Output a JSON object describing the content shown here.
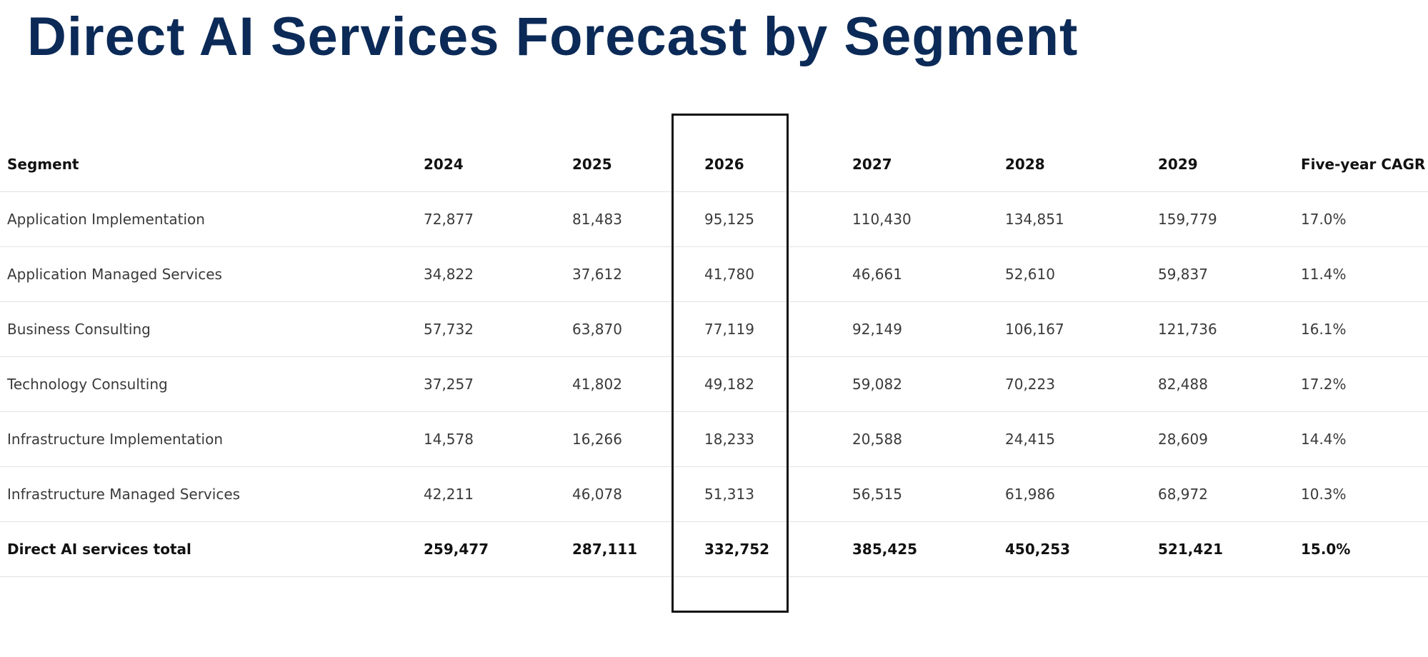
{
  "title": "Direct AI Services Forecast by Segment",
  "table": {
    "headers": [
      "Segment",
      "2024",
      "2025",
      "2026",
      "2027",
      "2028",
      "2029",
      "Five-year CAGR"
    ],
    "rows": [
      [
        "Application Implementation",
        "72,877",
        "81,483",
        "95,125",
        "110,430",
        "134,851",
        "159,779",
        "17.0%"
      ],
      [
        "Application Managed Services",
        "34,822",
        "37,612",
        "41,780",
        "46,661",
        "52,610",
        "59,837",
        "11.4%"
      ],
      [
        "Business Consulting",
        "57,732",
        "63,870",
        "77,119",
        "92,149",
        "106,167",
        "121,736",
        "16.1%"
      ],
      [
        "Technology Consulting",
        "37,257",
        "41,802",
        "49,182",
        "59,082",
        "70,223",
        "82,488",
        "17.2%"
      ],
      [
        "Infrastructure Implementation",
        "14,578",
        "16,266",
        "18,233",
        "20,588",
        "24,415",
        "28,609",
        "14.4%"
      ],
      [
        "Infrastructure Managed Services",
        "42,211",
        "46,078",
        "51,313",
        "56,515",
        "61,986",
        "68,972",
        "10.3%"
      ]
    ],
    "total": [
      "Direct AI services total",
      "259,477",
      "287,111",
      "332,752",
      "385,425",
      "450,253",
      "521,421",
      "15.0%"
    ]
  },
  "highlight": {
    "column": "2026"
  },
  "colors": {
    "title": "#0b2a57",
    "text": "#3a3a3a",
    "header_text": "#111111",
    "row_divider": "#e2e2e2",
    "highlight_border": "#111111"
  }
}
